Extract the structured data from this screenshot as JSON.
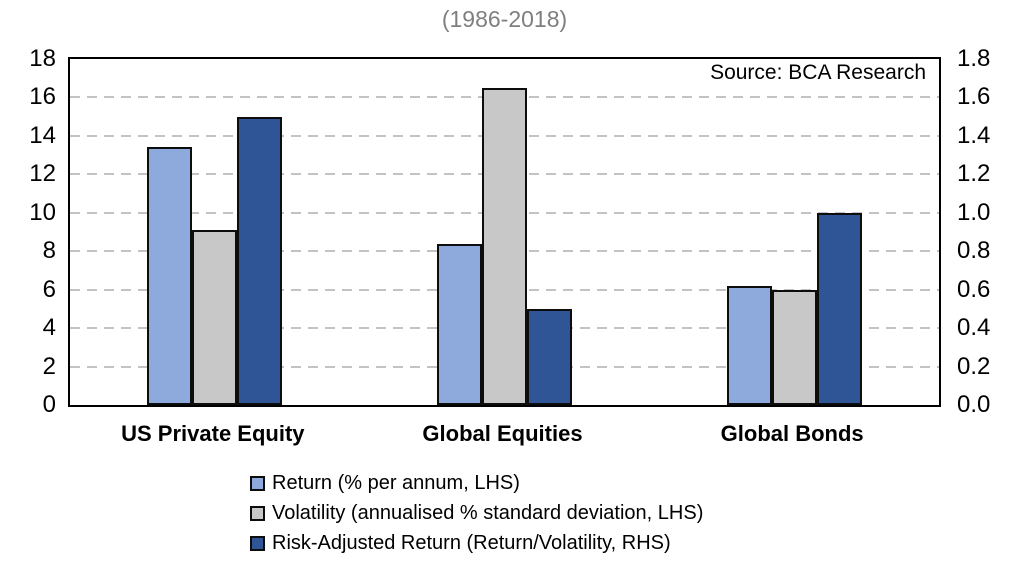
{
  "title": "(1986-2018)",
  "annotation": "Source: BCA Research",
  "colors": {
    "return_bar": "#8EA9DB",
    "volatility_bar": "#C8C8C8",
    "risk_adjusted_bar": "#2F5597",
    "gridline": "#C3C3C3",
    "title_text": "#7F7F7F",
    "bar_border": "#0D0D0D"
  },
  "chart_data": {
    "type": "bar",
    "title": "(1986-2018)",
    "annotation": "Source: BCA Research",
    "categories": [
      "US Private Equity",
      "Global Equities",
      "Global Bonds"
    ],
    "series": [
      {
        "name": "Return (% per annum, LHS)",
        "axis": "left",
        "color": "#8EA9DB",
        "values": [
          13.4,
          8.4,
          6.2
        ]
      },
      {
        "name": "Volatility (annualised % standard deviation, LHS)",
        "axis": "left",
        "color": "#C8C8C8",
        "values": [
          9.1,
          16.5,
          6.0
        ]
      },
      {
        "name": "Risk-Adjusted Return (Return/Volatility, RHS)",
        "axis": "right",
        "color": "#2F5597",
        "values": [
          1.5,
          0.5,
          1.0
        ]
      }
    ],
    "left_axis": {
      "min": 0,
      "max": 18,
      "step": 2,
      "decimals": 0
    },
    "right_axis": {
      "min": 0,
      "max": 1.8,
      "step": 0.2,
      "decimals": 1
    },
    "grid": "horizontal-dashed",
    "legend_position": "bottom"
  }
}
